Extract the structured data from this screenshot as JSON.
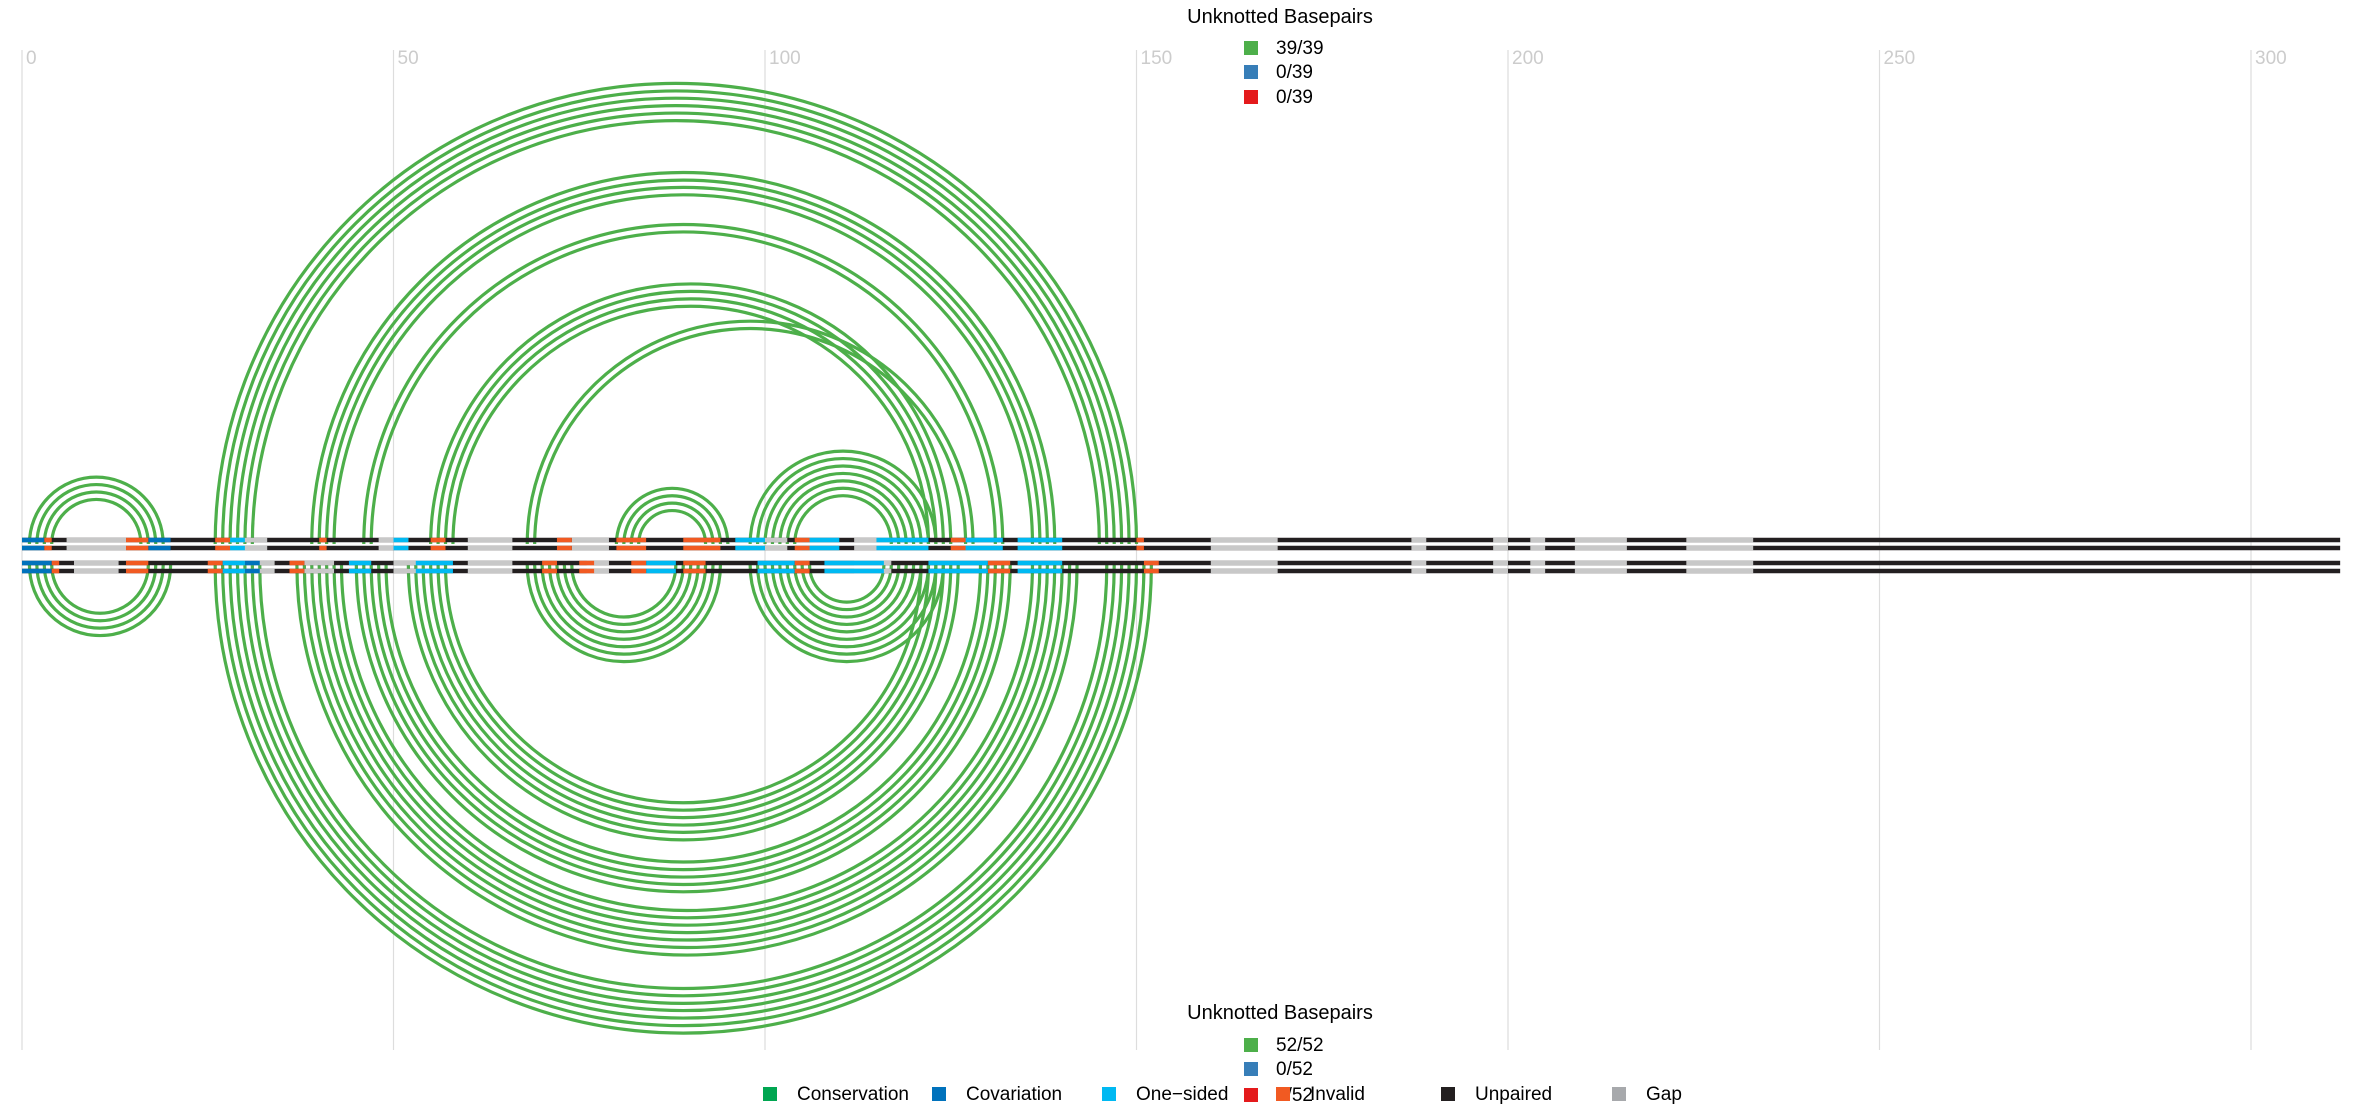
{
  "axis": {
    "ticks": [
      "0",
      "50",
      "100",
      "150",
      "200",
      "250",
      "300"
    ],
    "tick_values": [
      0,
      50,
      100,
      150,
      200,
      250,
      300
    ],
    "max": 312
  },
  "top_legend": {
    "title": "Unknotted Basepairs",
    "entries": [
      {
        "label": "39/39",
        "color": "#4daf4a"
      },
      {
        "label": "0/39",
        "color": "#377eb8"
      },
      {
        "label": "0/39",
        "color": "#e41a1c"
      }
    ]
  },
  "bottom_legend": {
    "title": "Unknotted Basepairs",
    "entries": [
      {
        "label": "52/52",
        "color": "#4daf4a"
      },
      {
        "label": "0/52",
        "color": "#377eb8"
      },
      {
        "label": "0/52",
        "color": "#e41a1c"
      }
    ]
  },
  "key": [
    {
      "label": "Conservation",
      "color": "#00a651"
    },
    {
      "label": "Covariation",
      "color": "#0072bc"
    },
    {
      "label": "One−sided",
      "color": "#00b9f2"
    },
    {
      "label": "Invalid",
      "color": "#f15a22"
    },
    {
      "label": "Unpaired",
      "color": "#231f20"
    },
    {
      "label": "Gap",
      "color": "#a7a9ac"
    }
  ],
  "colors": {
    "arc": "#4daf4a",
    "grid": "#dddddd",
    "tick": "#cccccc",
    "text": "#000000",
    "unpaired": "#231f20",
    "gap": "#c8c8c8",
    "invalid": "#f15a22",
    "covariation": "#0072bc",
    "onesided": "#00b9f2",
    "conservation": "#00a651"
  },
  "top_helices": [
    {
      "i": 1,
      "j": 19,
      "n": 4
    },
    {
      "i": 26,
      "j": 150,
      "n": 6
    },
    {
      "i": 39,
      "j": 139,
      "n": 4
    },
    {
      "i": 46,
      "j": 132,
      "n": 2
    },
    {
      "i": 55,
      "j": 125,
      "n": 4
    },
    {
      "i": 68,
      "j": 128,
      "n": 2
    },
    {
      "i": 80,
      "j": 95,
      "n": 4
    },
    {
      "i": 98,
      "j": 123,
      "n": 7
    }
  ],
  "bottom_helices": [
    {
      "i": 1,
      "j": 20,
      "n": 4
    },
    {
      "i": 26,
      "j": 152,
      "n": 7
    },
    {
      "i": 37,
      "j": 142,
      "n": 7
    },
    {
      "i": 45,
      "j": 133,
      "n": 5
    },
    {
      "i": 52,
      "j": 126,
      "n": 6
    },
    {
      "i": 68,
      "j": 94,
      "n": 7
    },
    {
      "i": 98,
      "j": 124,
      "n": 9
    }
  ],
  "top_tracks": {
    "gaps": [
      [
        6,
        14
      ],
      [
        28,
        33
      ],
      [
        48,
        52
      ],
      [
        60,
        66
      ],
      [
        74,
        79
      ],
      [
        98,
        103
      ],
      [
        112,
        117
      ],
      [
        160,
        169
      ],
      [
        187,
        189
      ],
      [
        198,
        200
      ],
      [
        203,
        205
      ],
      [
        209,
        216
      ],
      [
        224,
        233
      ]
    ],
    "invalid": [
      [
        3,
        4
      ],
      [
        14,
        17
      ],
      [
        26,
        28
      ],
      [
        40,
        41
      ],
      [
        55,
        57
      ],
      [
        72,
        74
      ],
      [
        80,
        84
      ],
      [
        89,
        94
      ],
      [
        104,
        106
      ],
      [
        125,
        127
      ],
      [
        150,
        151
      ]
    ],
    "covariation": [
      [
        0,
        3
      ],
      [
        17,
        20
      ]
    ],
    "onesided": [
      [
        28,
        30
      ],
      [
        50,
        52
      ],
      [
        96,
        100
      ],
      [
        105,
        110
      ],
      [
        115,
        122
      ],
      [
        126,
        132
      ],
      [
        134,
        140
      ]
    ]
  },
  "bottom_tracks": {
    "gaps": [
      [
        7,
        13
      ],
      [
        29,
        34
      ],
      [
        38,
        42
      ],
      [
        50,
        55
      ],
      [
        60,
        66
      ],
      [
        76,
        79
      ],
      [
        112,
        117
      ],
      [
        160,
        169
      ],
      [
        187,
        189
      ],
      [
        198,
        200
      ],
      [
        203,
        205
      ],
      [
        209,
        216
      ],
      [
        224,
        233
      ]
    ],
    "invalid": [
      [
        4,
        5
      ],
      [
        14,
        17
      ],
      [
        25,
        27
      ],
      [
        36,
        38
      ],
      [
        70,
        72
      ],
      [
        75,
        77
      ],
      [
        82,
        84
      ],
      [
        89,
        92
      ],
      [
        104,
        106
      ],
      [
        130,
        133
      ],
      [
        151,
        153
      ]
    ],
    "covariation": [
      [
        0,
        4
      ],
      [
        30,
        32
      ]
    ],
    "onesided": [
      [
        27,
        30
      ],
      [
        44,
        47
      ],
      [
        53,
        58
      ],
      [
        84,
        88
      ],
      [
        99,
        104
      ],
      [
        108,
        116
      ],
      [
        122,
        130
      ],
      [
        134,
        140
      ]
    ]
  }
}
